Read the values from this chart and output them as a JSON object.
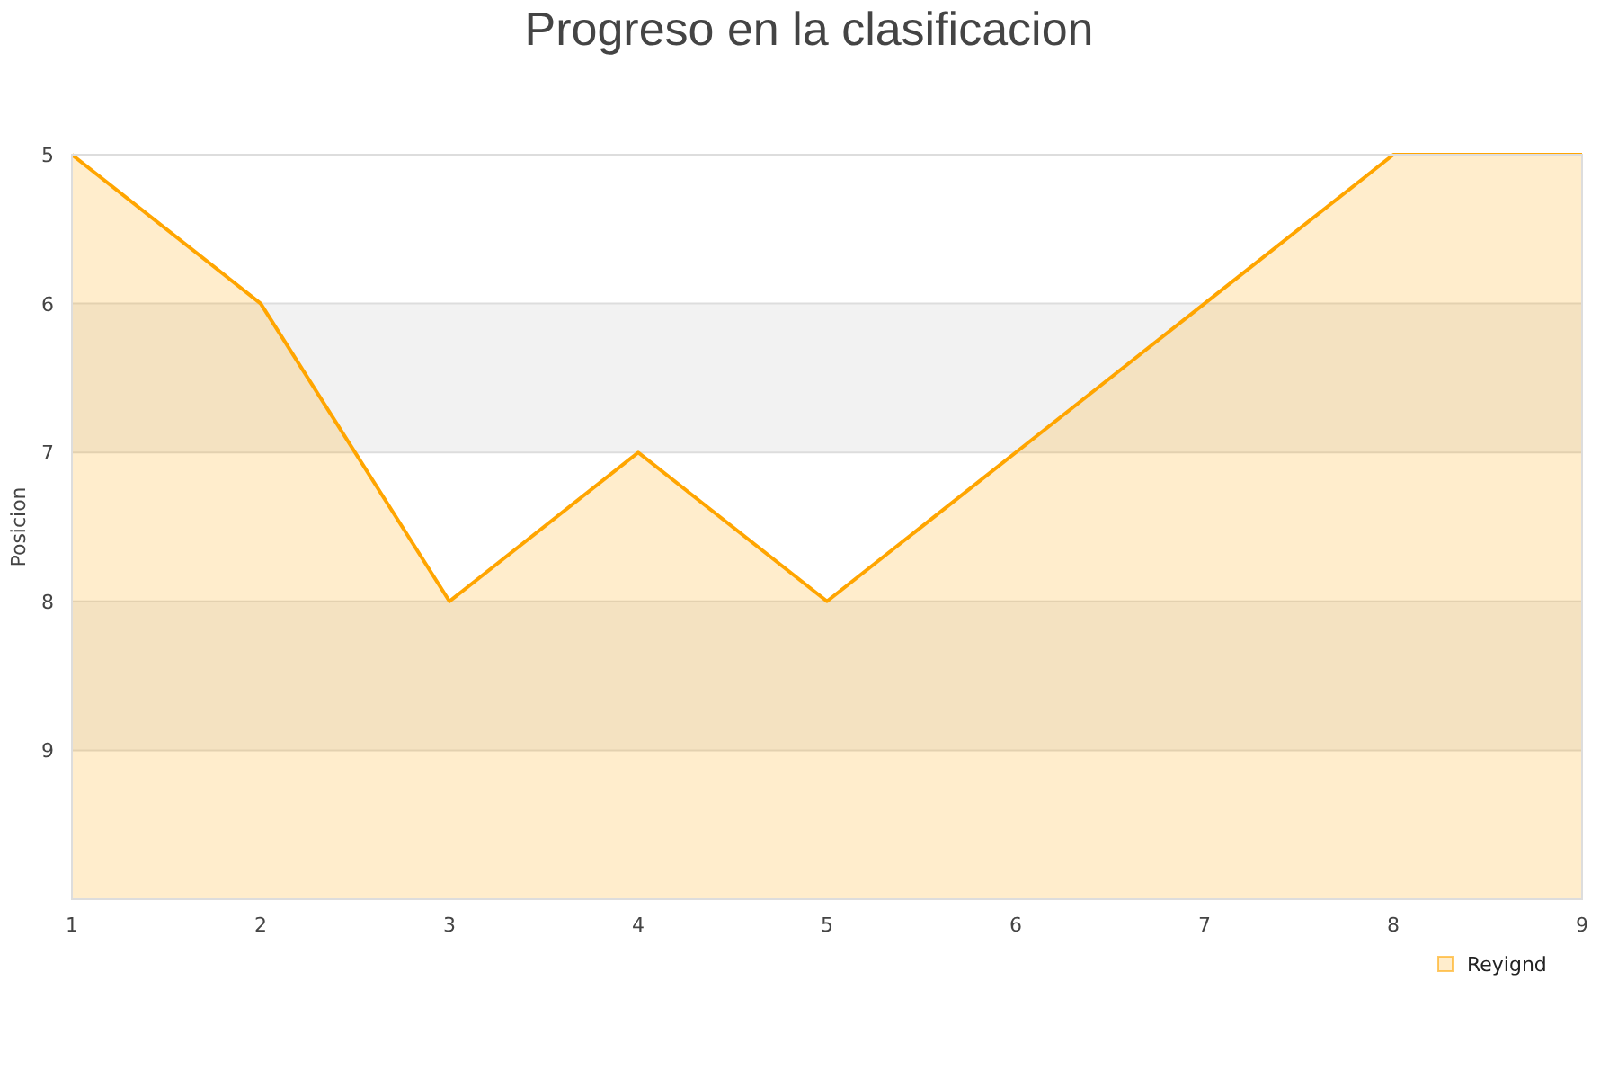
{
  "chart_data": {
    "type": "line",
    "title": "Progreso en la clasificacion",
    "ylabel": "Posicion",
    "x": [
      1,
      2,
      3,
      4,
      5,
      6,
      7,
      8,
      9
    ],
    "series": [
      {
        "name": "Reyignd",
        "color": "#ffa500",
        "values": [
          5,
          6,
          8,
          7,
          8,
          7,
          6,
          5,
          5
        ],
        "lower": [
          5,
          6,
          8,
          7,
          8,
          7,
          6,
          5,
          5
        ],
        "upper": [
          10,
          10,
          10,
          10,
          10,
          10,
          10,
          10,
          10
        ]
      }
    ],
    "xlim": [
      1,
      9
    ],
    "xticks": [
      1,
      2,
      3,
      4,
      5,
      6,
      7,
      8,
      9
    ],
    "ylim": [
      10,
      5
    ],
    "yticks": [
      5,
      6,
      7,
      8,
      9
    ],
    "grid": "y",
    "legend": "bottom right",
    "bands": [
      {
        "axis": "y",
        "from": 6,
        "to": 7,
        "color": "#f2f2f2"
      },
      {
        "axis": "y",
        "from": 8,
        "to": 9,
        "color": "#f2f2f2"
      }
    ]
  }
}
